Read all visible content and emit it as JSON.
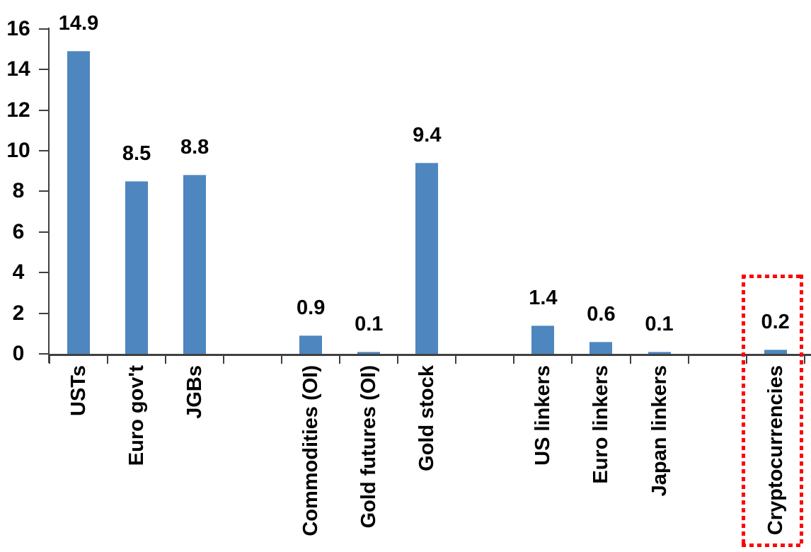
{
  "chart_data": {
    "type": "bar",
    "title": "",
    "categories": [
      "USTs",
      "Euro gov't",
      "JGBs",
      null,
      "Commodities (OI)",
      "Gold futures (OI)",
      "Gold stock",
      null,
      "US linkers",
      "Euro linkers",
      "Japan linkers",
      null,
      "Cryptocurrencies"
    ],
    "values": [
      14.9,
      8.5,
      8.8,
      null,
      0.9,
      0.1,
      9.4,
      null,
      1.4,
      0.6,
      0.1,
      null,
      0.2
    ],
    "labels": [
      "14.9",
      "8.5",
      "8.8",
      null,
      "0.9",
      "0.1",
      "9.4",
      null,
      "1.4",
      "0.6",
      "0.1",
      null,
      "0.2"
    ],
    "ylim": [
      0,
      16
    ],
    "yticks": [
      0,
      2,
      4,
      6,
      8,
      10,
      12,
      14,
      16
    ],
    "ytick_labels": [
      "0",
      "2",
      "4",
      "6",
      "8",
      "10",
      "12",
      "14",
      "16"
    ],
    "xlabel": "",
    "ylabel": "",
    "grid": false,
    "legend": null,
    "bar_color": "#4E86BF",
    "bar_border_color": "#87AED6",
    "axis_color": "#404040",
    "text_color": "#000000",
    "highlight": {
      "category": "Cryptocurrencies",
      "style": "dotted-box",
      "box_color": "#FF0000"
    }
  }
}
